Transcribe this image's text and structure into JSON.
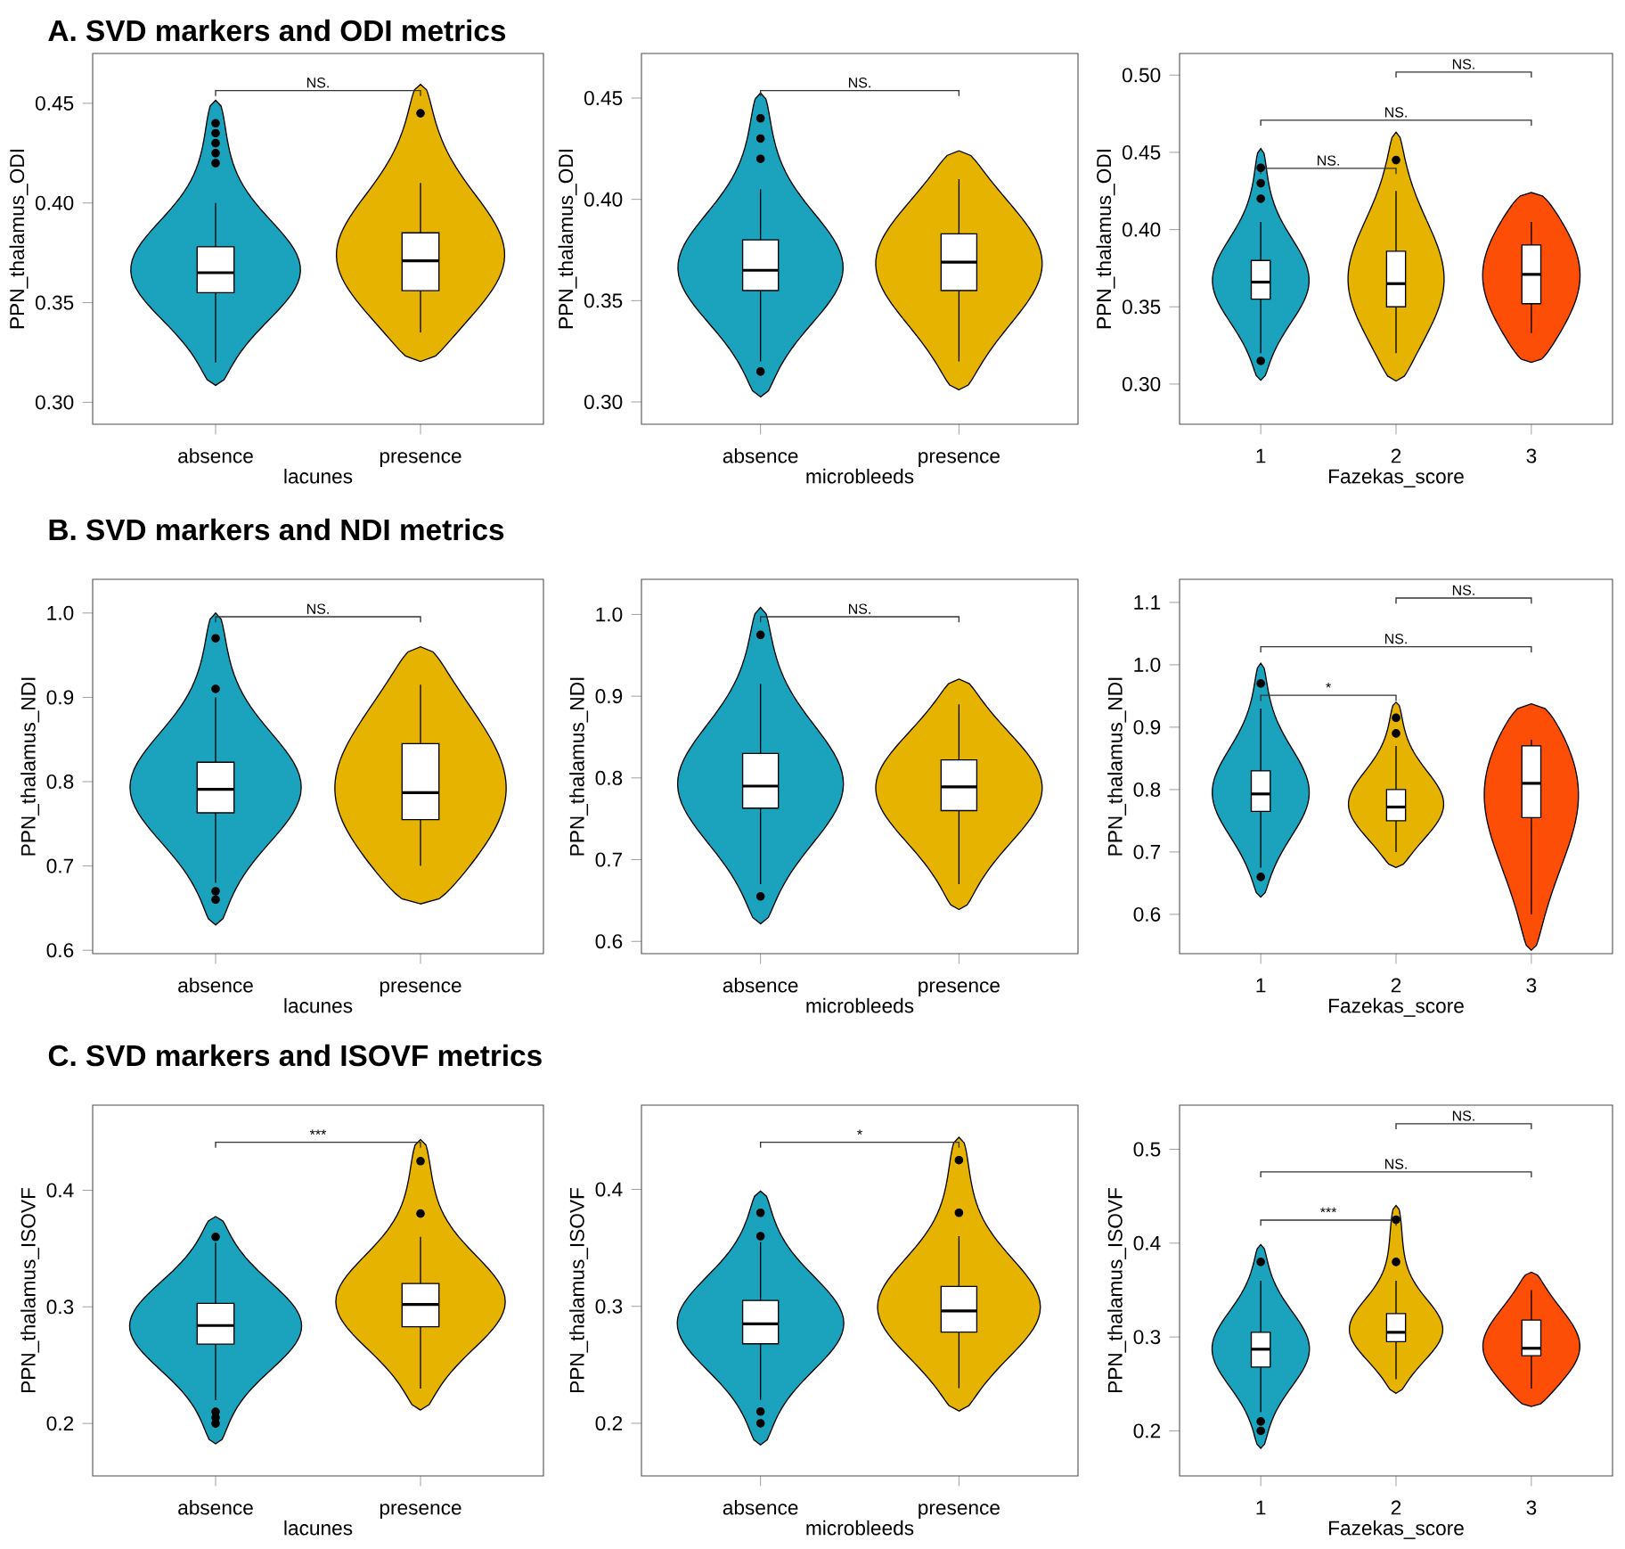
{
  "chart_data": [
    {
      "type": "box",
      "title": "A. SVD markers and ODI metrics",
      "categories": [
        "absence",
        "presence"
      ],
      "xlabel": "lacunes",
      "ylabel": "PPN_thalamus_ODI",
      "boxes": [
        {
          "low": 0.32,
          "q1": 0.355,
          "median": 0.365,
          "q3": 0.378,
          "high": 0.4,
          "outliers": [
            0.42,
            0.425,
            0.43,
            0.435,
            0.44
          ]
        },
        {
          "low": 0.335,
          "q1": 0.356,
          "median": 0.371,
          "q3": 0.385,
          "high": 0.41,
          "outliers": [
            0.445
          ]
        }
      ],
      "ylim": [
        0.289,
        0.475
      ],
      "yticks": [
        {
          "value": 0.3,
          "label": "0.30"
        },
        {
          "value": 0.35,
          "label": "0.35"
        },
        {
          "value": 0.4,
          "label": "0.40"
        },
        {
          "value": 0.45,
          "label": "0.45"
        }
      ],
      "annotations": [
        "NS."
      ]
    },
    {
      "type": "box",
      "categories": [
        "absence",
        "presence"
      ],
      "xlabel": "microbleeds",
      "ylabel": "PPN_thalamus_ODI",
      "boxes": [
        {
          "low": 0.32,
          "q1": 0.355,
          "median": 0.365,
          "q3": 0.38,
          "high": 0.405,
          "outliers": [
            0.315,
            0.42,
            0.43,
            0.44
          ]
        },
        {
          "low": 0.32,
          "q1": 0.355,
          "median": 0.369,
          "q3": 0.383,
          "high": 0.41
        }
      ],
      "ylim": [
        0.289,
        0.472
      ],
      "yticks": [
        {
          "value": 0.3,
          "label": "0.30"
        },
        {
          "value": 0.35,
          "label": "0.35"
        },
        {
          "value": 0.4,
          "label": "0.40"
        },
        {
          "value": 0.45,
          "label": "0.45"
        }
      ],
      "annotations": [
        "NS."
      ]
    },
    {
      "type": "box",
      "categories": [
        "1",
        "2",
        "3"
      ],
      "xlabel": "Fazekas_score",
      "ylabel": "PPN_thalamus_ODI",
      "boxes": [
        {
          "low": 0.32,
          "q1": 0.355,
          "median": 0.366,
          "q3": 0.38,
          "high": 0.405,
          "outliers": [
            0.315,
            0.42,
            0.43,
            0.44
          ]
        },
        {
          "low": 0.32,
          "q1": 0.35,
          "median": 0.365,
          "q3": 0.386,
          "high": 0.425,
          "outliers": [
            0.445
          ]
        },
        {
          "low": 0.333,
          "q1": 0.352,
          "median": 0.371,
          "q3": 0.39,
          "high": 0.405
        }
      ],
      "ylim": [
        0.274,
        0.514
      ],
      "yticks": [
        {
          "value": 0.3,
          "label": "0.30"
        },
        {
          "value": 0.35,
          "label": "0.35"
        },
        {
          "value": 0.4,
          "label": "0.40"
        },
        {
          "value": 0.45,
          "label": "0.45"
        },
        {
          "value": 0.5,
          "label": "0.50"
        }
      ],
      "annotations": [
        "NS.",
        "NS.",
        "NS."
      ]
    },
    {
      "type": "box",
      "title": "B. SVD markers and NDI metrics",
      "categories": [
        "absence",
        "presence"
      ],
      "xlabel": "lacunes",
      "ylabel": "PPN_thalamus_NDI",
      "boxes": [
        {
          "low": 0.68,
          "q1": 0.763,
          "median": 0.791,
          "q3": 0.823,
          "high": 0.9,
          "outliers": [
            0.66,
            0.67,
            0.91,
            0.97
          ]
        },
        {
          "low": 0.7,
          "q1": 0.755,
          "median": 0.787,
          "q3": 0.845,
          "high": 0.915
        }
      ],
      "ylim": [
        0.596,
        1.04
      ],
      "yticks": [
        0.6,
        0.7,
        0.8,
        0.9,
        {
          "value": 1.0,
          "label": "1.0"
        }
      ],
      "annotations": [
        "NS."
      ]
    },
    {
      "type": "box",
      "categories": [
        "absence",
        "presence"
      ],
      "xlabel": "microbleeds",
      "ylabel": "PPN_thalamus_NDI",
      "boxes": [
        {
          "low": 0.67,
          "q1": 0.763,
          "median": 0.79,
          "q3": 0.83,
          "high": 0.915,
          "outliers": [
            0.655,
            0.975
          ]
        },
        {
          "low": 0.67,
          "q1": 0.76,
          "median": 0.789,
          "q3": 0.822,
          "high": 0.89
        }
      ],
      "ylim": [
        0.585,
        1.043
      ],
      "yticks": [
        0.6,
        0.7,
        0.8,
        0.9,
        {
          "value": 1.0,
          "label": "1.0"
        }
      ],
      "annotations": [
        "NS."
      ]
    },
    {
      "type": "box",
      "categories": [
        "1",
        "2",
        "3"
      ],
      "xlabel": "Fazekas_score",
      "ylabel": "PPN_thalamus_NDI",
      "boxes": [
        {
          "low": 0.675,
          "q1": 0.765,
          "median": 0.793,
          "q3": 0.83,
          "high": 0.93,
          "outliers": [
            0.66,
            0.97
          ]
        },
        {
          "low": 0.7,
          "q1": 0.75,
          "median": 0.772,
          "q3": 0.8,
          "high": 0.87,
          "outliers": [
            0.89,
            0.915
          ]
        },
        {
          "low": 0.6,
          "q1": 0.755,
          "median": 0.81,
          "q3": 0.87,
          "high": 0.88
        }
      ],
      "ylim": [
        0.537,
        1.137
      ],
      "yticks": [
        0.6,
        0.7,
        0.8,
        0.9,
        {
          "value": 1.0,
          "label": "1.0"
        },
        1.1
      ],
      "annotations": [
        "NS.",
        "NS.",
        "*"
      ]
    },
    {
      "type": "box",
      "title": "C. SVD markers and ISOVF metrics",
      "categories": [
        "absence",
        "presence"
      ],
      "xlabel": "lacunes",
      "ylabel": "PPN_thalamus_ISOVF",
      "boxes": [
        {
          "low": 0.22,
          "q1": 0.268,
          "median": 0.284,
          "q3": 0.303,
          "high": 0.355,
          "outliers": [
            0.2,
            0.205,
            0.21,
            0.36
          ]
        },
        {
          "low": 0.23,
          "q1": 0.283,
          "median": 0.302,
          "q3": 0.32,
          "high": 0.36,
          "outliers": [
            0.38,
            0.425
          ]
        }
      ],
      "ylim": [
        0.155,
        0.473
      ],
      "yticks": [
        0.2,
        0.3,
        0.4
      ],
      "annotations": [
        "***"
      ]
    },
    {
      "type": "box",
      "categories": [
        "absence",
        "presence"
      ],
      "xlabel": "microbleeds",
      "ylabel": "PPN_thalamus_ISOVF",
      "boxes": [
        {
          "low": 0.22,
          "q1": 0.268,
          "median": 0.285,
          "q3": 0.305,
          "high": 0.355,
          "outliers": [
            0.2,
            0.21,
            0.36,
            0.38
          ]
        },
        {
          "low": 0.23,
          "q1": 0.278,
          "median": 0.296,
          "q3": 0.317,
          "high": 0.36,
          "outliers": [
            0.38,
            0.425
          ]
        }
      ],
      "ylim": [
        0.155,
        0.472
      ],
      "yticks": [
        0.2,
        0.3,
        0.4
      ],
      "annotations": [
        "*"
      ]
    },
    {
      "type": "box",
      "categories": [
        "1",
        "2",
        "3"
      ],
      "xlabel": "Fazekas_score",
      "ylabel": "PPN_thalamus_ISOVF",
      "boxes": [
        {
          "low": 0.22,
          "q1": 0.268,
          "median": 0.287,
          "q3": 0.305,
          "high": 0.36,
          "outliers": [
            0.2,
            0.21,
            0.38
          ]
        },
        {
          "low": 0.255,
          "q1": 0.295,
          "median": 0.305,
          "q3": 0.325,
          "high": 0.36,
          "outliers": [
            0.38,
            0.425
          ]
        },
        {
          "low": 0.245,
          "q1": 0.28,
          "median": 0.288,
          "q3": 0.318,
          "high": 0.35
        }
      ],
      "ylim": [
        0.152,
        0.547
      ],
      "yticks": [
        0.2,
        0.3,
        0.4,
        0.5
      ],
      "annotations": [
        "NS.",
        "NS.",
        "***"
      ]
    }
  ]
}
